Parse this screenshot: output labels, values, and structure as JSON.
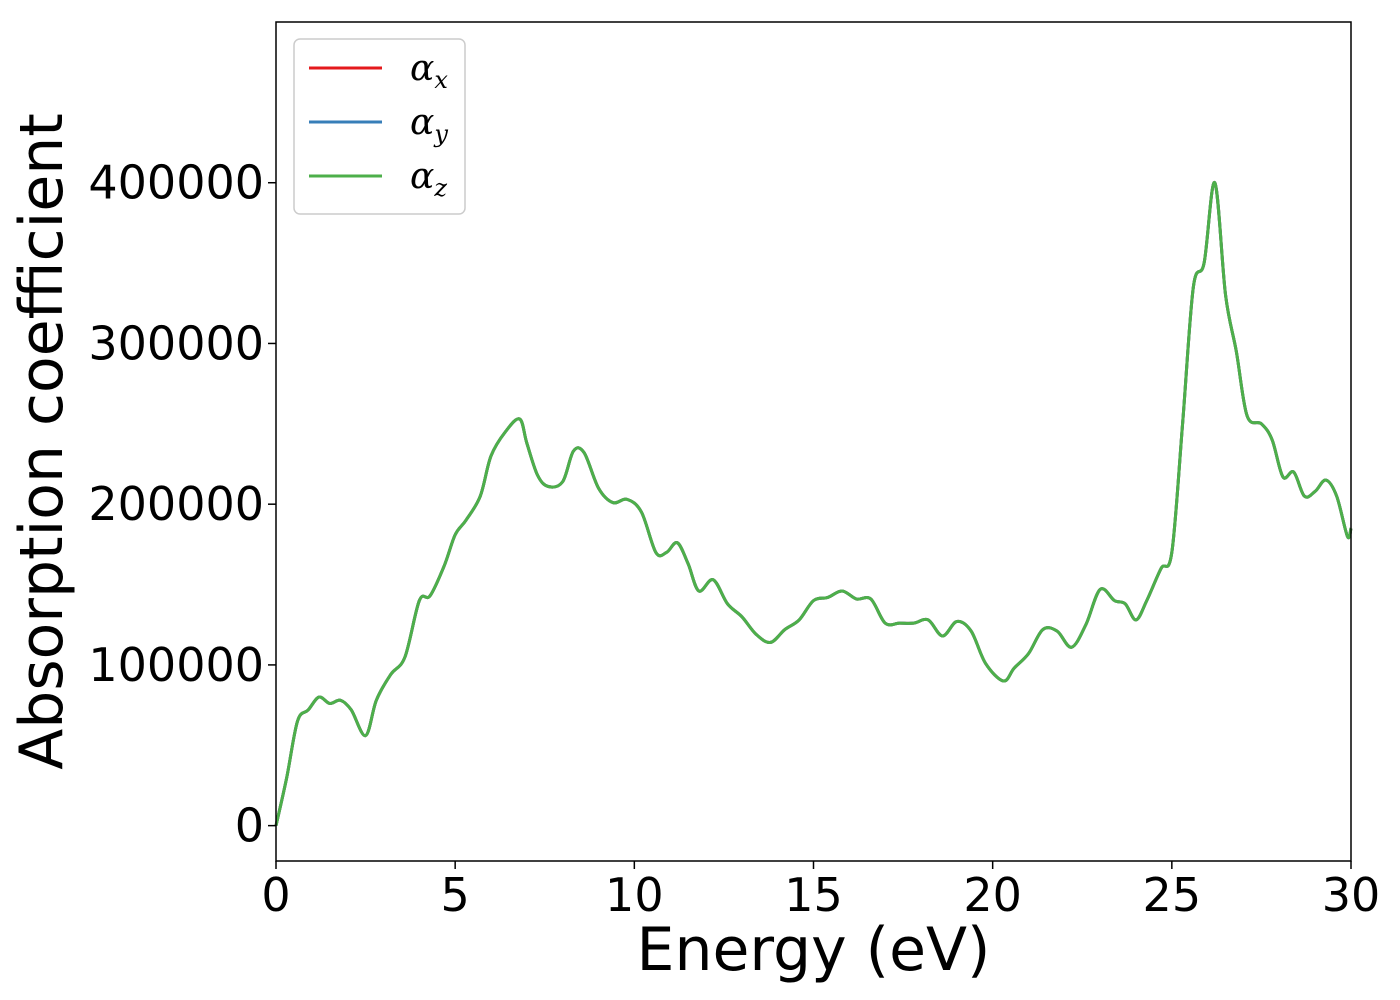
{
  "chart_data": {
    "type": "line",
    "title": "",
    "xlabel": "Energy (eV)",
    "ylabel": "Absorption coefficient",
    "xlim": [
      0,
      30
    ],
    "ylim": [
      -22000,
      500000
    ],
    "xticks": [
      0,
      5,
      10,
      15,
      20,
      25,
      30
    ],
    "yticks": [
      0,
      100000,
      200000,
      300000,
      400000
    ],
    "xtick_labels": [
      "0",
      "5",
      "10",
      "15",
      "20",
      "25",
      "30"
    ],
    "ytick_labels": [
      "0",
      "100000",
      "200000",
      "300000",
      "400000"
    ],
    "grid": false,
    "legend_position": "top-left",
    "series": [
      {
        "name": "α",
        "subscript": "x",
        "color": "#e41a1c",
        "values": "same-as-x"
      },
      {
        "name": "α",
        "subscript": "y",
        "color": "#377eb8",
        "values": "same-as-x"
      },
      {
        "name": "α",
        "subscript": "z",
        "color": "#4daf4a",
        "values": "same-as-x"
      }
    ],
    "x": [
      0,
      0.3,
      0.6,
      0.9,
      1.2,
      1.5,
      1.8,
      2.1,
      2.5,
      2.8,
      3.2,
      3.6,
      4.0,
      4.3,
      4.7,
      5.0,
      5.3,
      5.7,
      6.0,
      6.4,
      6.8,
      7.0,
      7.3,
      7.6,
      8.0,
      8.3,
      8.6,
      9.0,
      9.4,
      9.8,
      10.2,
      10.6,
      10.9,
      11.2,
      11.5,
      11.8,
      12.2,
      12.6,
      13.0,
      13.4,
      13.8,
      14.2,
      14.6,
      15.0,
      15.4,
      15.8,
      16.2,
      16.6,
      17.0,
      17.4,
      17.8,
      18.2,
      18.6,
      19.0,
      19.4,
      19.8,
      20.3,
      20.6,
      21.0,
      21.4,
      21.8,
      22.2,
      22.6,
      23.0,
      23.4,
      23.7,
      24.0,
      24.3,
      24.7,
      25.0,
      25.3,
      25.6,
      25.9,
      26.2,
      26.5,
      26.8,
      27.1,
      27.5,
      27.8,
      28.1,
      28.4,
      28.7,
      29.0,
      29.3,
      29.6,
      29.9,
      30.0
    ],
    "values": [
      0,
      30000,
      65000,
      72000,
      80000,
      76000,
      78000,
      72000,
      56000,
      78000,
      94000,
      105000,
      140000,
      143000,
      162000,
      181000,
      190000,
      205000,
      230000,
      245000,
      253000,
      238000,
      218000,
      211000,
      214000,
      233000,
      232000,
      210000,
      201000,
      203000,
      195000,
      170000,
      170000,
      176000,
      163000,
      146000,
      153000,
      138000,
      130000,
      119000,
      114000,
      122000,
      128000,
      140000,
      142000,
      146000,
      141000,
      141000,
      126000,
      126000,
      126000,
      128000,
      118000,
      127000,
      121000,
      101000,
      90000,
      98000,
      107000,
      122000,
      121000,
      111000,
      125000,
      147000,
      140000,
      138000,
      128000,
      140000,
      160000,
      170000,
      250000,
      335000,
      350000,
      400000,
      330000,
      295000,
      255000,
      250000,
      240000,
      217000,
      220000,
      205000,
      208000,
      215000,
      205000,
      180000,
      185000
    ]
  }
}
